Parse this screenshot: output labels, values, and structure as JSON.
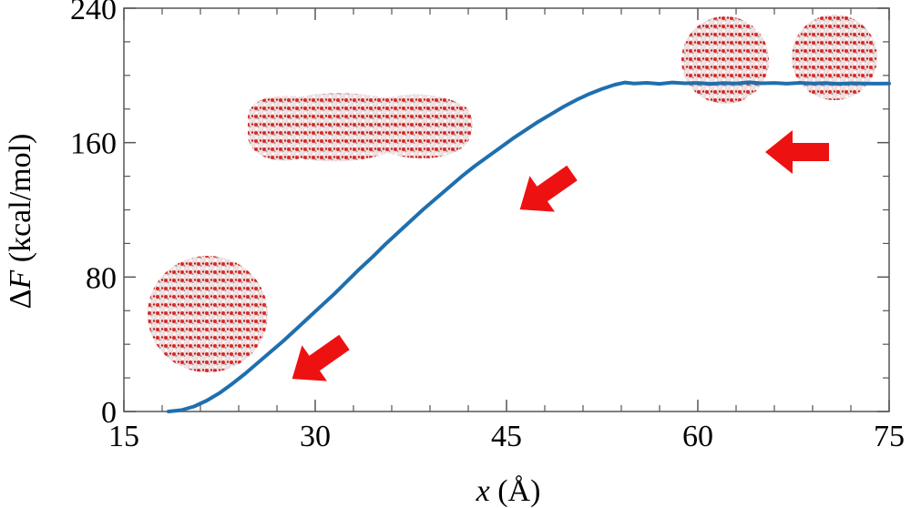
{
  "chart_data": {
    "type": "line",
    "xlabel_var": "x",
    "xlabel_unit": " (Å)",
    "ylabel_sym": "Δ",
    "ylabel_var": "F",
    "ylabel_unit": " (kcal/mol)",
    "xlim": [
      15,
      75
    ],
    "ylim": [
      0,
      240
    ],
    "xticks": [
      15,
      30,
      45,
      60,
      75
    ],
    "yticks": [
      0,
      80,
      160,
      240
    ],
    "xticks_minor": [
      18,
      21,
      24,
      27,
      33,
      36,
      39,
      42,
      48,
      51,
      54,
      57,
      63,
      66,
      69,
      72
    ],
    "yticks_minor": [
      20,
      40,
      60,
      100,
      120,
      140,
      180,
      200,
      220
    ],
    "grid": false,
    "legend": "none",
    "series": [
      {
        "color": "#1f6fae",
        "x": [
          18.5,
          19.5,
          20.5,
          21.5,
          22.5,
          23.5,
          24.5,
          25.5,
          26.5,
          27.5,
          28.5,
          29.5,
          30.5,
          31.5,
          32.5,
          33.5,
          34.5,
          35.5,
          36.5,
          37.5,
          38.5,
          39.5,
          40.5,
          41.5,
          42.5,
          43.5,
          44.5,
          45.5,
          46.5,
          47.5,
          48.5,
          49.5,
          50.5,
          51.5,
          52.5,
          53.5,
          54.3,
          55,
          56,
          57,
          58,
          59,
          60,
          61,
          62,
          63,
          64,
          65,
          66,
          67,
          68,
          69,
          70,
          71,
          72,
          73,
          74,
          75
        ],
        "y": [
          0,
          0.8,
          3,
          6.5,
          11,
          16.5,
          22.5,
          29,
          35.5,
          42,
          49,
          56,
          63,
          70,
          77.5,
          85,
          92,
          99.5,
          106.5,
          113.5,
          120.5,
          127,
          133.5,
          140,
          146,
          151.5,
          157,
          162.5,
          167.5,
          172.5,
          177,
          181.5,
          185.5,
          189,
          192,
          194.5,
          195.8,
          195.2,
          195.6,
          195,
          195.8,
          195.3,
          195.5,
          195,
          195.4,
          195.2,
          195.9,
          195.3,
          195.5,
          195.1,
          195.6,
          195.2,
          195.4,
          195,
          195.3,
          195.2,
          195.1,
          195.2
        ]
      }
    ],
    "annotations": [
      {
        "type": "droplet-image",
        "shape": "single-sphere",
        "position": "lower-left"
      },
      {
        "type": "droplet-image",
        "shape": "elongated-merged",
        "position": "upper-middle"
      },
      {
        "type": "droplet-image",
        "shape": "two-separate-spheres",
        "position": "top-right"
      },
      {
        "type": "arrow",
        "color": "#ee1111",
        "direction": "lower-left",
        "position": "lower-left"
      },
      {
        "type": "arrow",
        "color": "#ee1111",
        "direction": "lower-left",
        "position": "middle"
      },
      {
        "type": "arrow",
        "color": "#ee1111",
        "direction": "left",
        "position": "right"
      }
    ]
  }
}
